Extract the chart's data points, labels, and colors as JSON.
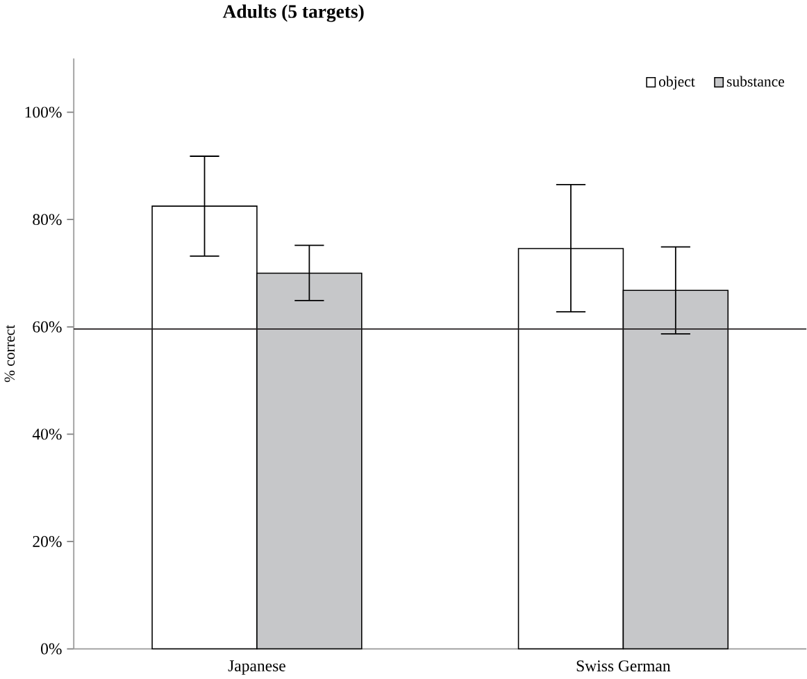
{
  "chart_data": {
    "type": "bar",
    "title": "Adults (5 targets)",
    "ylabel": "% correct",
    "categories": [
      "Japanese",
      "Swiss German"
    ],
    "series": [
      {
        "name": "object",
        "color": "#ffffff",
        "values": [
          82.5,
          74.6
        ],
        "errors": [
          [
            73.2,
            91.8
          ],
          [
            62.8,
            86.5
          ]
        ]
      },
      {
        "name": "substance",
        "color": "#c6c7c9",
        "values": [
          70.0,
          66.8
        ],
        "errors": [
          [
            64.9,
            75.2
          ],
          [
            58.7,
            74.9
          ]
        ]
      }
    ],
    "ylim": [
      0,
      110
    ],
    "yticks": [
      {
        "value": 0,
        "label": "0%"
      },
      {
        "value": 20,
        "label": "20%"
      },
      {
        "value": 40,
        "label": "40%"
      },
      {
        "value": 60,
        "label": "60%"
      },
      {
        "value": 80,
        "label": "80%"
      },
      {
        "value": 100,
        "label": "100%"
      }
    ],
    "ref_lines": [
      {
        "axis": "y",
        "value": 59.6,
        "color": "#231f20"
      }
    ],
    "grid": false,
    "legend": "top right"
  }
}
